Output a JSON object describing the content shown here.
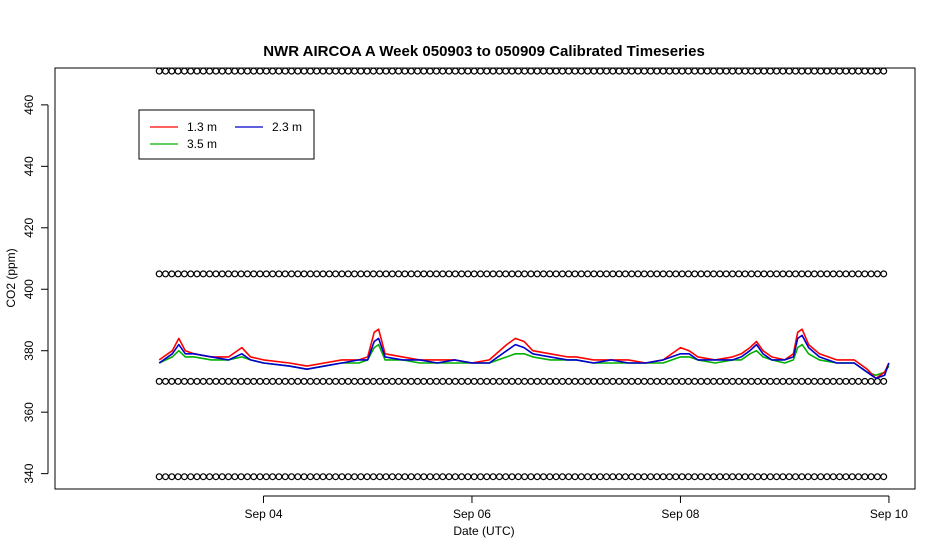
{
  "chart_data": {
    "type": "line",
    "title": "NWR AIRCOA A  Week 050903 to 050909  Calibrated Timeseries",
    "xlabel": "Date (UTC)",
    "ylabel": "CO2 (ppm)",
    "x_axis": {
      "kind": "date",
      "range": [
        "2005-09-02T00:00",
        "2005-09-10T06:00"
      ],
      "ticks": [
        {
          "value": "2005-09-04T00:00",
          "label": "Sep 04"
        },
        {
          "value": "2005-09-06T00:00",
          "label": "Sep 06"
        },
        {
          "value": "2005-09-08T00:00",
          "label": "Sep 08"
        },
        {
          "value": "2005-09-10T00:00",
          "label": "Sep 10"
        }
      ]
    },
    "y_axis": {
      "range": [
        335,
        472
      ],
      "ticks": [
        340,
        360,
        380,
        400,
        420,
        440,
        460
      ],
      "tick_labels": [
        "340",
        "360",
        "380",
        "400",
        "420",
        "440",
        "460"
      ]
    },
    "grid": false,
    "legend": {
      "placement": "top-left",
      "entries": [
        {
          "name": "1.3 m",
          "color": "#ff0000"
        },
        {
          "name": "2.3 m",
          "color": "#0000cc"
        },
        {
          "name": "3.5 m",
          "color": "#00b000"
        }
      ]
    },
    "series": [
      {
        "name": "1.3 m",
        "color": "#ff0000",
        "points": [
          [
            "2005-09-03T00:00",
            377
          ],
          [
            "2005-09-03T03:00",
            380
          ],
          [
            "2005-09-03T04:30",
            384
          ],
          [
            "2005-09-03T06:00",
            380
          ],
          [
            "2005-09-03T08:00",
            379
          ],
          [
            "2005-09-03T12:00",
            378
          ],
          [
            "2005-09-03T16:00",
            378
          ],
          [
            "2005-09-03T19:00",
            381
          ],
          [
            "2005-09-03T21:00",
            378
          ],
          [
            "2005-09-04T00:00",
            377
          ],
          [
            "2005-09-04T06:00",
            376
          ],
          [
            "2005-09-04T10:00",
            375
          ],
          [
            "2005-09-04T14:00",
            376
          ],
          [
            "2005-09-04T18:00",
            377
          ],
          [
            "2005-09-04T22:00",
            377
          ],
          [
            "2005-09-05T00:00",
            378
          ],
          [
            "2005-09-05T01:30",
            386
          ],
          [
            "2005-09-05T02:30",
            387
          ],
          [
            "2005-09-05T04:00",
            379
          ],
          [
            "2005-09-05T08:00",
            378
          ],
          [
            "2005-09-05T12:00",
            377
          ],
          [
            "2005-09-05T16:00",
            377
          ],
          [
            "2005-09-05T20:00",
            377
          ],
          [
            "2005-09-06T00:00",
            376
          ],
          [
            "2005-09-06T04:00",
            377
          ],
          [
            "2005-09-06T08:00",
            382
          ],
          [
            "2005-09-06T10:00",
            384
          ],
          [
            "2005-09-06T12:00",
            383
          ],
          [
            "2005-09-06T14:00",
            380
          ],
          [
            "2005-09-06T18:00",
            379
          ],
          [
            "2005-09-06T22:00",
            378
          ],
          [
            "2005-09-07T00:00",
            378
          ],
          [
            "2005-09-07T04:00",
            377
          ],
          [
            "2005-09-07T08:00",
            377
          ],
          [
            "2005-09-07T12:00",
            377
          ],
          [
            "2005-09-07T16:00",
            376
          ],
          [
            "2005-09-07T20:00",
            377
          ],
          [
            "2005-09-08T00:00",
            381
          ],
          [
            "2005-09-08T02:00",
            380
          ],
          [
            "2005-09-08T04:00",
            378
          ],
          [
            "2005-09-08T08:00",
            377
          ],
          [
            "2005-09-08T12:00",
            378
          ],
          [
            "2005-09-08T14:00",
            379
          ],
          [
            "2005-09-08T16:00",
            381
          ],
          [
            "2005-09-08T17:30",
            383
          ],
          [
            "2005-09-08T19:00",
            380
          ],
          [
            "2005-09-08T21:00",
            378
          ],
          [
            "2005-09-09T00:00",
            377
          ],
          [
            "2005-09-09T02:00",
            379
          ],
          [
            "2005-09-09T03:00",
            386
          ],
          [
            "2005-09-09T04:00",
            387
          ],
          [
            "2005-09-09T05:30",
            382
          ],
          [
            "2005-09-09T08:00",
            379
          ],
          [
            "2005-09-09T12:00",
            377
          ],
          [
            "2005-09-09T16:00",
            377
          ],
          [
            "2005-09-09T19:00",
            374
          ],
          [
            "2005-09-09T21:00",
            371
          ],
          [
            "2005-09-09T23:00",
            373
          ],
          [
            "2005-09-10T00:00",
            376
          ]
        ]
      },
      {
        "name": "2.3 m",
        "color": "#0000cc",
        "points": [
          [
            "2005-09-03T00:00",
            376
          ],
          [
            "2005-09-03T03:00",
            379
          ],
          [
            "2005-09-03T04:30",
            382
          ],
          [
            "2005-09-03T06:00",
            379
          ],
          [
            "2005-09-03T08:00",
            379
          ],
          [
            "2005-09-03T12:00",
            378
          ],
          [
            "2005-09-03T16:00",
            377
          ],
          [
            "2005-09-03T19:00",
            379
          ],
          [
            "2005-09-03T21:00",
            377
          ],
          [
            "2005-09-04T00:00",
            376
          ],
          [
            "2005-09-04T06:00",
            375
          ],
          [
            "2005-09-04T10:00",
            374
          ],
          [
            "2005-09-04T14:00",
            375
          ],
          [
            "2005-09-04T18:00",
            376
          ],
          [
            "2005-09-04T22:00",
            377
          ],
          [
            "2005-09-05T00:00",
            377
          ],
          [
            "2005-09-05T01:30",
            383
          ],
          [
            "2005-09-05T02:30",
            384
          ],
          [
            "2005-09-05T04:00",
            378
          ],
          [
            "2005-09-05T08:00",
            377
          ],
          [
            "2005-09-05T12:00",
            377
          ],
          [
            "2005-09-05T16:00",
            376
          ],
          [
            "2005-09-05T20:00",
            377
          ],
          [
            "2005-09-06T00:00",
            376
          ],
          [
            "2005-09-06T04:00",
            376
          ],
          [
            "2005-09-06T08:00",
            380
          ],
          [
            "2005-09-06T10:00",
            382
          ],
          [
            "2005-09-06T12:00",
            381
          ],
          [
            "2005-09-06T14:00",
            379
          ],
          [
            "2005-09-06T18:00",
            378
          ],
          [
            "2005-09-06T22:00",
            377
          ],
          [
            "2005-09-07T00:00",
            377
          ],
          [
            "2005-09-07T04:00",
            376
          ],
          [
            "2005-09-07T08:00",
            377
          ],
          [
            "2005-09-07T12:00",
            376
          ],
          [
            "2005-09-07T16:00",
            376
          ],
          [
            "2005-09-07T20:00",
            377
          ],
          [
            "2005-09-08T00:00",
            379
          ],
          [
            "2005-09-08T02:00",
            379
          ],
          [
            "2005-09-08T04:00",
            377
          ],
          [
            "2005-09-08T08:00",
            377
          ],
          [
            "2005-09-08T12:00",
            377
          ],
          [
            "2005-09-08T14:00",
            378
          ],
          [
            "2005-09-08T16:00",
            380
          ],
          [
            "2005-09-08T17:30",
            382
          ],
          [
            "2005-09-08T19:00",
            379
          ],
          [
            "2005-09-08T21:00",
            377
          ],
          [
            "2005-09-09T00:00",
            377
          ],
          [
            "2005-09-09T02:00",
            378
          ],
          [
            "2005-09-09T03:00",
            384
          ],
          [
            "2005-09-09T04:00",
            385
          ],
          [
            "2005-09-09T05:30",
            381
          ],
          [
            "2005-09-09T08:00",
            378
          ],
          [
            "2005-09-09T12:00",
            376
          ],
          [
            "2005-09-09T16:00",
            376
          ],
          [
            "2005-09-09T19:00",
            373
          ],
          [
            "2005-09-09T21:00",
            371
          ],
          [
            "2005-09-09T23:00",
            372
          ],
          [
            "2005-09-10T00:00",
            376
          ]
        ]
      },
      {
        "name": "3.5 m",
        "color": "#00b000",
        "points": [
          [
            "2005-09-03T00:00",
            376
          ],
          [
            "2005-09-03T03:00",
            378
          ],
          [
            "2005-09-03T04:30",
            380
          ],
          [
            "2005-09-03T06:00",
            378
          ],
          [
            "2005-09-03T08:00",
            378
          ],
          [
            "2005-09-03T12:00",
            377
          ],
          [
            "2005-09-03T16:00",
            377
          ],
          [
            "2005-09-03T19:00",
            378
          ],
          [
            "2005-09-03T21:00",
            377
          ],
          [
            "2005-09-04T00:00",
            376
          ],
          [
            "2005-09-04T06:00",
            375
          ],
          [
            "2005-09-04T10:00",
            374
          ],
          [
            "2005-09-04T14:00",
            375
          ],
          [
            "2005-09-04T18:00",
            376
          ],
          [
            "2005-09-04T22:00",
            376
          ],
          [
            "2005-09-05T00:00",
            377
          ],
          [
            "2005-09-05T01:30",
            381
          ],
          [
            "2005-09-05T02:30",
            382
          ],
          [
            "2005-09-05T04:00",
            377
          ],
          [
            "2005-09-05T08:00",
            377
          ],
          [
            "2005-09-05T12:00",
            376
          ],
          [
            "2005-09-05T16:00",
            376
          ],
          [
            "2005-09-05T20:00",
            376
          ],
          [
            "2005-09-06T00:00",
            376
          ],
          [
            "2005-09-06T04:00",
            376
          ],
          [
            "2005-09-06T08:00",
            378
          ],
          [
            "2005-09-06T10:00",
            379
          ],
          [
            "2005-09-06T12:00",
            379
          ],
          [
            "2005-09-06T14:00",
            378
          ],
          [
            "2005-09-06T18:00",
            377
          ],
          [
            "2005-09-06T22:00",
            377
          ],
          [
            "2005-09-07T00:00",
            377
          ],
          [
            "2005-09-07T04:00",
            376
          ],
          [
            "2005-09-07T08:00",
            376
          ],
          [
            "2005-09-07T12:00",
            376
          ],
          [
            "2005-09-07T16:00",
            376
          ],
          [
            "2005-09-07T20:00",
            376
          ],
          [
            "2005-09-08T00:00",
            378
          ],
          [
            "2005-09-08T02:00",
            378
          ],
          [
            "2005-09-08T04:00",
            377
          ],
          [
            "2005-09-08T08:00",
            376
          ],
          [
            "2005-09-08T12:00",
            377
          ],
          [
            "2005-09-08T14:00",
            377
          ],
          [
            "2005-09-08T16:00",
            379
          ],
          [
            "2005-09-08T17:30",
            380
          ],
          [
            "2005-09-08T19:00",
            378
          ],
          [
            "2005-09-08T21:00",
            377
          ],
          [
            "2005-09-09T00:00",
            376
          ],
          [
            "2005-09-09T02:00",
            377
          ],
          [
            "2005-09-09T03:00",
            381
          ],
          [
            "2005-09-09T04:00",
            382
          ],
          [
            "2005-09-09T05:30",
            379
          ],
          [
            "2005-09-09T08:00",
            377
          ],
          [
            "2005-09-09T12:00",
            376
          ],
          [
            "2005-09-09T16:00",
            376
          ],
          [
            "2005-09-09T19:00",
            373
          ],
          [
            "2005-09-09T21:00",
            372
          ],
          [
            "2005-09-09T23:00",
            373
          ],
          [
            "2005-09-10T00:00",
            375
          ]
        ]
      }
    ],
    "marker_rows": [
      {
        "y": 471,
        "marker": "o"
      },
      {
        "y": 405,
        "marker": "o"
      },
      {
        "y": 370,
        "marker": "o"
      },
      {
        "y": 339,
        "marker": "o"
      }
    ],
    "marker_x_range": [
      "2005-09-03T00:00",
      "2005-09-10T00:00"
    ]
  }
}
